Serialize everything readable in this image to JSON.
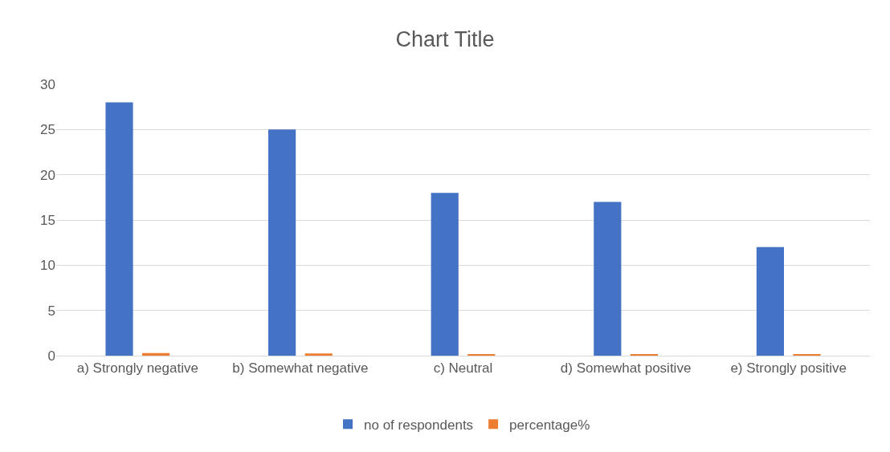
{
  "chart_data": {
    "type": "bar",
    "title": "Chart Title",
    "categories": [
      "a) Strongly negative",
      "b) Somewhat negative",
      "c) Neutral",
      "d) Somewhat positive",
      "e) Strongly positive"
    ],
    "series": [
      {
        "name": "no of respondents",
        "color": "#4472c4",
        "values": [
          28,
          25,
          18,
          17,
          12
        ]
      },
      {
        "name": "percentage%",
        "color": "#ed7d31",
        "values": [
          0.28,
          0.25,
          0.18,
          0.17,
          0.12
        ]
      }
    ],
    "ylim": [
      0,
      30
    ],
    "yticks": [
      0,
      5,
      10,
      15,
      20,
      25,
      30
    ],
    "grid": "y",
    "legend": "bottom"
  }
}
